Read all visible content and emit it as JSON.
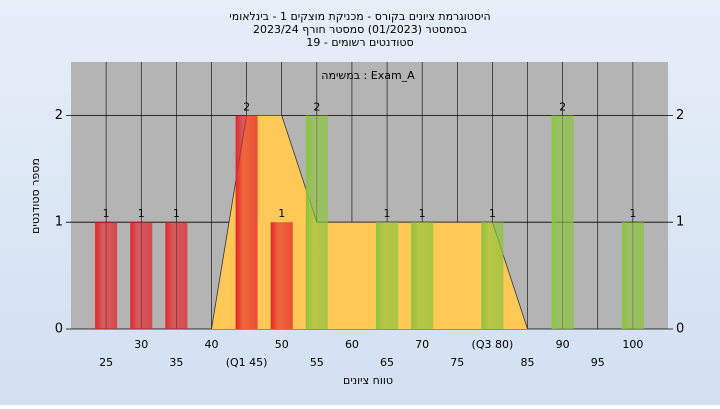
{
  "chart_data": {
    "type": "bar",
    "title": [
      "היסטוגרמת ציונים בקורס - מכניקת מוצקים 1 - בינלאומי",
      "בסמסטר  (01/2023)  סמסטר חורף 2023/24",
      "סטודנטים רשומים - 19"
    ],
    "subtitle": "במשימה : Exam_A",
    "x_label": "טווח ציונים",
    "y_label": "מספר סטודנטים",
    "categories": [
      "25",
      "30",
      "35",
      "40",
      "(Q1 45)",
      "50",
      "55",
      "60",
      "65",
      "70",
      "75",
      "(Q3 80)",
      "85",
      "90",
      "95",
      "100"
    ],
    "values": [
      1,
      1,
      1,
      0,
      2,
      1,
      2,
      0,
      1,
      1,
      0,
      1,
      0,
      2,
      0,
      1
    ],
    "colors": [
      "#e3262b",
      "#e3262b",
      "#e3262b",
      "#e3262b",
      "#e3262b",
      "#e3262b",
      "#8cc43c",
      "#8cc43c",
      "#8cc43c",
      "#8cc43c",
      "#8cc43c",
      "#8cc43c",
      "#8cc43c",
      "#8cc43c",
      "#8cc43c",
      "#8cc43c"
    ],
    "area_values": [
      null,
      null,
      null,
      0,
      2,
      2,
      1,
      1,
      1,
      1,
      1,
      1,
      0,
      null,
      null,
      null
    ],
    "area_color": "#ffc857",
    "ylim": [
      0,
      2.5
    ],
    "yticks": [
      0,
      1,
      2
    ],
    "grid": true
  }
}
